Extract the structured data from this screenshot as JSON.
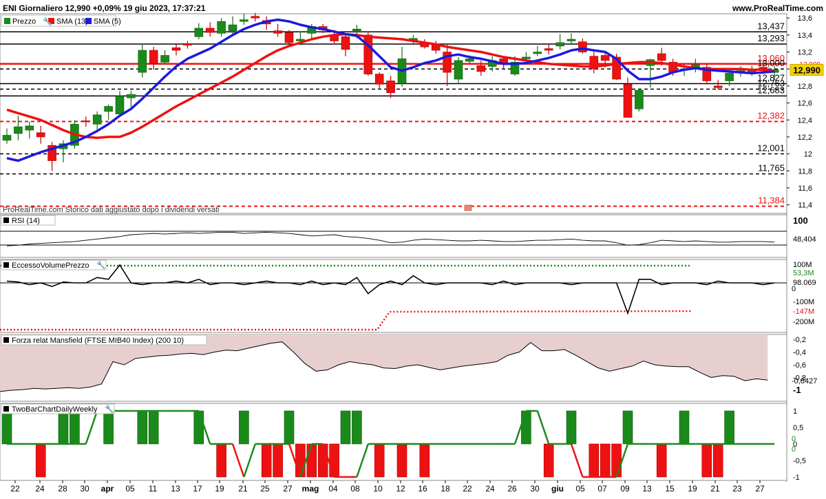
{
  "header": {
    "title": "ENI Giornaliero 12,990 +0,09% 19 giu 2023, 17:37:21",
    "site": "www.ProRealTime.com"
  },
  "colors": {
    "up": "#1a8a1a",
    "down": "#ee1111",
    "sma13": "#ee1111",
    "sma5": "#1a1ae0",
    "level_black": "#000000",
    "level_red": "#ee1111",
    "axis_text": "#000000"
  },
  "chart_data": [
    {
      "type": "candlestick",
      "panel": "price",
      "legend": [
        {
          "label": "Prezzo",
          "color": "#1a8a1a"
        },
        {
          "label": "SMA (13)",
          "color": "#ee1111"
        },
        {
          "label": "SMA (5)",
          "color": "#1a1ae0"
        }
      ],
      "ylim": [
        11.3,
        13.65
      ],
      "yticks": [
        "13,6",
        "13,4",
        "13,2",
        "13",
        "12,8",
        "12,6",
        "12,4",
        "12,2",
        "12",
        "11,8",
        "11,6",
        "11,4"
      ],
      "yticks_values": [
        13.6,
        13.4,
        13.2,
        13.0,
        12.8,
        12.6,
        12.4,
        12.2,
        12.0,
        11.8,
        11.6,
        11.4
      ],
      "x_labels": [
        "22",
        "24",
        "28",
        "30",
        "apr",
        "05",
        "11",
        "13",
        "17",
        "19",
        "21",
        "25",
        "27",
        "mag",
        "04",
        "08",
        "10",
        "12",
        "16",
        "18",
        "22",
        "24",
        "26",
        "30",
        "giu",
        "05",
        "07",
        "09",
        "13",
        "15",
        "19",
        "21",
        "23",
        "27"
      ],
      "candles": [
        [
          12.16,
          12.22,
          12.3,
          12.12
        ],
        [
          12.24,
          12.32,
          12.45,
          12.16
        ],
        [
          12.28,
          12.33,
          12.38,
          12.18
        ],
        [
          12.25,
          12.2,
          12.33,
          12.12
        ],
        [
          12.1,
          11.92,
          12.14,
          11.8
        ],
        [
          12.06,
          12.12,
          12.16,
          11.9
        ],
        [
          12.1,
          12.35,
          12.4,
          12.06
        ],
        [
          12.39,
          12.38,
          12.44,
          12.32
        ],
        [
          12.35,
          12.46,
          12.5,
          12.28
        ],
        [
          12.5,
          12.56,
          12.58,
          12.4
        ],
        [
          12.47,
          12.68,
          12.74,
          12.44
        ],
        [
          12.66,
          12.7,
          12.74,
          12.55
        ],
        [
          12.96,
          13.22,
          13.3,
          12.9
        ],
        [
          13.22,
          13.06,
          13.26,
          12.99
        ],
        [
          13.08,
          13.16,
          13.22,
          13.05
        ],
        [
          13.25,
          13.22,
          13.3,
          13.16
        ],
        [
          13.3,
          13.28,
          13.33,
          13.24
        ],
        [
          13.38,
          13.48,
          13.54,
          13.35
        ],
        [
          13.48,
          13.43,
          13.55,
          13.38
        ],
        [
          13.42,
          13.56,
          13.6,
          13.38
        ],
        [
          13.45,
          13.52,
          13.62,
          13.4
        ],
        [
          13.56,
          13.58,
          13.65,
          13.52
        ],
        [
          13.62,
          13.6,
          13.66,
          13.56
        ],
        [
          13.57,
          13.53,
          13.62,
          13.46
        ],
        [
          13.45,
          13.42,
          13.53,
          13.38
        ],
        [
          13.43,
          13.31,
          13.46,
          13.27
        ],
        [
          13.33,
          13.35,
          13.44,
          13.28
        ],
        [
          13.42,
          13.5,
          13.53,
          13.35
        ],
        [
          13.5,
          13.46,
          13.53,
          13.42
        ],
        [
          13.4,
          13.33,
          13.46,
          13.29
        ],
        [
          13.38,
          13.23,
          13.4,
          13.15
        ],
        [
          13.45,
          13.47,
          13.52,
          13.36
        ],
        [
          13.4,
          12.94,
          13.44,
          12.92
        ],
        [
          12.94,
          12.82,
          12.96,
          12.76
        ],
        [
          12.86,
          12.72,
          12.92,
          12.66
        ],
        [
          12.83,
          13.12,
          13.26,
          12.79
        ],
        [
          13.34,
          13.36,
          13.4,
          13.3
        ],
        [
          13.3,
          13.26,
          13.35,
          13.24
        ],
        [
          13.28,
          13.22,
          13.33,
          13.18
        ],
        [
          13.2,
          12.96,
          13.3,
          12.8
        ],
        [
          12.88,
          13.1,
          13.14,
          12.82
        ],
        [
          13.09,
          13.12,
          13.16,
          13.06
        ],
        [
          13.04,
          12.97,
          13.1,
          12.92
        ],
        [
          13.03,
          13.1,
          13.15,
          12.97
        ],
        [
          13.12,
          13.06,
          13.15,
          13.0
        ],
        [
          12.94,
          13.08,
          13.15,
          12.92
        ],
        [
          13.12,
          13.14,
          13.2,
          13.06
        ],
        [
          13.18,
          13.2,
          13.27,
          13.15
        ],
        [
          13.24,
          13.22,
          13.3,
          13.17
        ],
        [
          13.27,
          13.31,
          13.41,
          13.23
        ],
        [
          13.33,
          13.35,
          13.42,
          13.3
        ],
        [
          13.32,
          13.2,
          13.36,
          13.18
        ],
        [
          13.15,
          13.0,
          13.22,
          12.95
        ],
        [
          13.16,
          13.1,
          13.21,
          13.02
        ],
        [
          13.14,
          12.88,
          13.18,
          12.87
        ],
        [
          12.82,
          12.43,
          12.9,
          12.43
        ],
        [
          12.53,
          12.75,
          12.77,
          12.5
        ],
        [
          13.04,
          13.11,
          13.12,
          12.78
        ],
        [
          13.18,
          13.1,
          13.25,
          13.04
        ],
        [
          13.08,
          12.96,
          13.12,
          12.92
        ],
        [
          13.0,
          13.0,
          13.05,
          12.92
        ],
        [
          13.0,
          13.05,
          13.12,
          12.96
        ],
        [
          13.02,
          12.86,
          13.06,
          12.82
        ],
        [
          12.8,
          12.78,
          12.87,
          12.76
        ],
        [
          12.86,
          12.95,
          12.98,
          12.8
        ],
        [
          12.97,
          12.98,
          13.03,
          12.91
        ],
        [
          12.96,
          13.0,
          13.04,
          12.92
        ],
        [
          13.02,
          12.98,
          13.1,
          12.94
        ],
        [
          12.96,
          12.99,
          13.04,
          12.87
        ]
      ],
      "sma13": [
        12.52,
        12.48,
        12.44,
        12.4,
        12.34,
        12.28,
        12.23,
        12.2,
        12.19,
        12.2,
        12.2,
        12.25,
        12.32,
        12.4,
        12.48,
        12.56,
        12.63,
        12.7,
        12.77,
        12.84,
        12.91,
        12.99,
        13.07,
        13.15,
        13.22,
        13.27,
        13.31,
        13.35,
        13.38,
        13.4,
        13.41,
        13.4,
        13.38,
        13.37,
        13.36,
        13.35,
        13.33,
        13.31,
        13.29,
        13.26,
        13.24,
        13.22,
        13.2,
        13.17,
        13.14,
        13.12,
        13.1,
        13.08,
        13.06,
        13.05,
        13.04,
        13.03,
        13.03,
        13.04,
        13.06,
        13.07,
        13.08,
        13.08,
        13.07,
        13.05,
        13.03,
        13.01,
        13.0,
        13.0,
        13.0,
        13.0,
        12.99,
        12.99,
        12.98
      ],
      "sma5": [
        11.95,
        11.92,
        11.97,
        12.02,
        12.06,
        12.1,
        12.14,
        12.2,
        12.27,
        12.35,
        12.45,
        12.53,
        12.65,
        12.78,
        12.91,
        13.03,
        13.12,
        13.18,
        13.24,
        13.32,
        13.4,
        13.47,
        13.52,
        13.56,
        13.58,
        13.56,
        13.52,
        13.49,
        13.47,
        13.44,
        13.41,
        13.39,
        13.28,
        13.15,
        13.02,
        12.98,
        13.02,
        13.07,
        13.1,
        13.15,
        13.17,
        13.14,
        13.12,
        13.09,
        13.06,
        13.06,
        13.07,
        13.1,
        13.13,
        13.17,
        13.22,
        13.24,
        13.22,
        13.2,
        13.12,
        12.98,
        12.88,
        12.88,
        12.91,
        12.96,
        12.99,
        13.01,
        12.99,
        12.98,
        12.97,
        12.96,
        12.95,
        12.96,
        12.97
      ],
      "levels": [
        {
          "label": "13,437",
          "value": 13.437,
          "style": "solid",
          "color": "#000000"
        },
        {
          "label": "13,293",
          "value": 13.293,
          "style": "solid",
          "color": "#000000"
        },
        {
          "label": "13,060",
          "value": 13.06,
          "style": "solid",
          "color": "#ee1111"
        },
        {
          "label": "13,000",
          "value": 13.0,
          "style": "dashed",
          "color": "#000000"
        },
        {
          "label": "12,827",
          "value": 12.827,
          "style": "solid",
          "color": "#000000"
        },
        {
          "label": "12,763",
          "value": 12.763,
          "style": "dashed",
          "color": "#000000"
        },
        {
          "label": "12,683",
          "value": 12.683,
          "style": "solid",
          "color": "#000000"
        },
        {
          "label": "12,382",
          "value": 12.382,
          "style": "dashed",
          "color": "#ee1111"
        },
        {
          "label": "12,001",
          "value": 12.001,
          "style": "dashed",
          "color": "#000000"
        },
        {
          "label": "11,765",
          "value": 11.765,
          "style": "dashed",
          "color": "#000000"
        },
        {
          "label": "11,384",
          "value": 11.384,
          "style": "dashed",
          "color": "#ee1111"
        }
      ],
      "last_price_label": "12,990",
      "last_price": 12.99,
      "axis_tags": [
        {
          "label": "12,999",
          "value": 13.06,
          "color": "#ee1111"
        },
        {
          "label": "12,993",
          "value": 12.97,
          "color": "#1a1ae0"
        }
      ],
      "note": "ProRealTime.com Storico dati aggiustato dopo i dividendi versati"
    },
    {
      "type": "line",
      "panel": "rsi",
      "legend": "RSI (14)",
      "ytick_label": "100",
      "last_label": "48,404",
      "values": [
        42,
        43,
        45,
        46,
        47,
        48,
        49,
        51,
        53,
        55,
        57,
        60,
        61,
        62,
        61,
        62,
        63,
        62,
        63,
        64,
        64,
        62,
        63,
        64,
        63,
        62,
        60,
        58,
        59,
        60,
        57,
        56,
        54,
        51,
        47,
        48,
        51,
        53,
        52,
        51,
        50,
        50,
        51,
        50,
        49,
        49,
        50,
        51,
        51,
        52,
        53,
        51,
        50,
        50,
        47,
        43,
        44,
        47,
        51,
        50,
        49,
        50,
        49,
        48,
        48,
        49,
        49,
        49,
        48
      ]
    },
    {
      "type": "line",
      "panel": "volume_excess",
      "legend": "EccessoVolumePrezzo",
      "ytick_labels": [
        "100M",
        "-100M",
        "-200M"
      ],
      "last_labels": [
        "53,3M",
        "98.069",
        "0",
        "-147M"
      ],
      "values": [
        10,
        5,
        -10,
        0,
        -20,
        5,
        0,
        0,
        30,
        20,
        100,
        0,
        -10,
        0,
        0,
        10,
        0,
        20,
        -10,
        0,
        0,
        -10,
        0,
        10,
        0,
        0,
        -10,
        10,
        -10,
        0,
        -10,
        30,
        -60,
        -10,
        10,
        -10,
        40,
        0,
        -10,
        0,
        0,
        0,
        0,
        -10,
        10,
        -10,
        0,
        0,
        0,
        0,
        -10,
        0,
        0,
        0,
        0,
        -170,
        20,
        20,
        -10,
        0,
        0,
        0,
        -10,
        10,
        0,
        0,
        0,
        -10,
        0
      ],
      "upper_band": [
        100,
        100,
        100,
        100,
        100,
        100,
        100,
        100,
        100,
        100,
        100,
        100,
        100,
        100,
        100,
        100,
        100,
        100,
        100,
        100,
        100,
        100,
        100,
        100,
        100,
        100,
        100,
        100,
        100,
        100,
        100,
        100,
        100,
        100,
        100,
        100,
        100,
        100,
        100,
        100,
        100,
        100,
        100,
        100,
        100,
        100,
        100,
        100,
        100,
        100,
        100,
        100,
        100,
        100,
        100,
        100,
        100,
        100,
        100,
        100,
        100,
        100,
        100,
        100,
        100,
        100,
        100,
        100,
        53.3
      ],
      "lower_band_start": 33,
      "lower_band": [
        -280,
        -280,
        -280,
        -280,
        -280,
        -280,
        -280,
        -280,
        -280,
        -280,
        -280,
        -280,
        -280,
        -280,
        -280,
        -280,
        -280,
        -280,
        -280,
        -280,
        -280,
        -280,
        -280,
        -280,
        -280,
        -280,
        -280,
        -280,
        -280,
        -280,
        -280,
        -280,
        -280,
        -280,
        -280,
        -280,
        -280,
        -280,
        -280,
        -280,
        -280,
        -280,
        -280,
        -280,
        -280,
        -280,
        -280,
        -280,
        -280,
        -280,
        -280,
        -280,
        -280,
        -280,
        -280,
        -280,
        -280,
        -280,
        -280,
        -280,
        -280,
        -280,
        -280,
        -280,
        -280,
        -280,
        -280,
        -280,
        -280
      ]
    },
    {
      "type": "area",
      "panel": "mansfield",
      "legend": "Forza relat Mansfield (FTSE MIB40 Index) (200 10)",
      "ytick_labels": [
        "-0,2",
        "-0,4",
        "-0,6",
        "-0,8",
        "-1"
      ],
      "ytick_values": [
        -0.2,
        -0.4,
        -0.6,
        -0.8,
        -1.0
      ],
      "last_label": "-0,8427",
      "values": [
        -1.02,
        -1.0,
        -0.99,
        -0.97,
        -0.98,
        -0.97,
        -0.96,
        -0.97,
        -0.95,
        -0.9,
        -0.55,
        -0.6,
        -0.5,
        -0.48,
        -0.46,
        -0.45,
        -0.43,
        -0.42,
        -0.44,
        -0.4,
        -0.37,
        -0.38,
        -0.34,
        -0.3,
        -0.26,
        -0.24,
        -0.4,
        -0.58,
        -0.7,
        -0.68,
        -0.6,
        -0.55,
        -0.58,
        -0.6,
        -0.65,
        -0.66,
        -0.62,
        -0.6,
        -0.64,
        -0.68,
        -0.65,
        -0.62,
        -0.6,
        -0.58,
        -0.55,
        -0.45,
        -0.4,
        -0.25,
        -0.38,
        -0.38,
        -0.36,
        -0.45,
        -0.55,
        -0.65,
        -0.7,
        -0.66,
        -0.62,
        -0.54,
        -0.6,
        -0.62,
        -0.63,
        -0.63,
        -0.72,
        -0.8,
        -0.77,
        -0.78,
        -0.85,
        -0.82,
        -0.84
      ]
    },
    {
      "type": "bar",
      "panel": "twobar",
      "legend": "TwoBarChartDailyWeekly",
      "ytick_labels": [
        "1",
        "0,5",
        "0",
        "-0,5",
        "-1"
      ],
      "ytick_values": [
        1,
        0.5,
        0,
        -0.5,
        -1
      ],
      "last_labels": [
        "0",
        "0"
      ],
      "daily": [
        1,
        0,
        0,
        -1,
        0,
        1,
        1,
        0,
        0,
        1,
        0,
        0,
        1,
        1,
        0,
        0,
        0,
        1,
        0,
        -1,
        0,
        1,
        0,
        -1,
        -1,
        1,
        -1,
        -1,
        -1,
        -1,
        1,
        1,
        0,
        -1,
        0,
        -1,
        0,
        -1,
        0,
        0,
        0,
        0,
        0,
        0,
        0,
        0,
        1,
        0,
        -1,
        0,
        1,
        0,
        -1,
        -1,
        -1,
        1,
        0,
        0,
        -1,
        0,
        1,
        0,
        -1,
        -1,
        1,
        0,
        0,
        0,
        0
      ],
      "weekly": [
        0,
        0,
        0,
        0,
        0,
        0,
        0,
        0,
        1,
        1,
        1,
        1,
        1,
        1,
        1,
        1,
        1,
        1,
        0,
        0,
        0,
        -1,
        0,
        0,
        0,
        0,
        -1,
        0,
        0,
        -1,
        -1,
        -1,
        0,
        0,
        0,
        0,
        0,
        0,
        0,
        0,
        0,
        0,
        0,
        0,
        0,
        0,
        1,
        1,
        0,
        0,
        0,
        -1,
        -1,
        -1,
        -1,
        0,
        0,
        0,
        0,
        0,
        0,
        0,
        0,
        0,
        0,
        0,
        0,
        0,
        0
      ]
    }
  ]
}
